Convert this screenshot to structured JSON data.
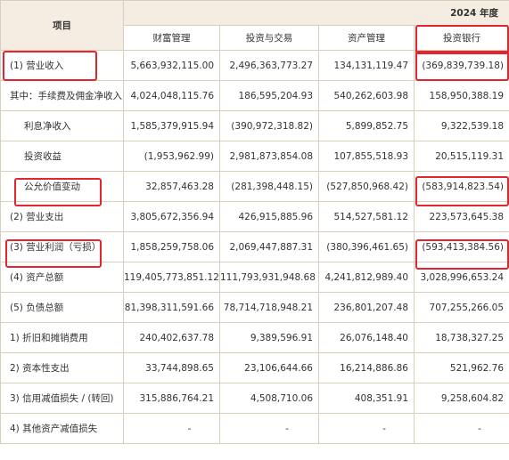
{
  "header": {
    "item_label": "项目",
    "year_label": "2024 年度",
    "columns": [
      "财富管理",
      "投资与交易",
      "资产管理",
      "投资银行"
    ]
  },
  "rows": [
    {
      "label": "(1) 营业收入",
      "values": [
        "5,663,932,115.00",
        "2,496,363,773.27",
        "134,131,119.47",
        "(369,839,739.18)"
      ]
    },
    {
      "label": "其中：手续费及佣金净收入",
      "values": [
        "4,024,048,115.76",
        "186,595,204.93",
        "540,262,603.98",
        "158,950,388.19"
      ]
    },
    {
      "label": "利息净收入",
      "values": [
        "1,585,379,915.94",
        "(390,972,318.82)",
        "5,899,852.75",
        "9,322,539.18"
      ]
    },
    {
      "label": "投资收益",
      "values": [
        "(1,953,962.99)",
        "2,981,873,854.08",
        "107,855,518.93",
        "20,515,119.31"
      ]
    },
    {
      "label": "公允价值变动",
      "values": [
        "32,857,463.28",
        "(281,398,448.15)",
        "(527,850,968.42)",
        "(583,914,823.54)"
      ]
    },
    {
      "label": "(2) 营业支出",
      "values": [
        "3,805,672,356.94",
        "426,915,885.96",
        "514,527,581.12",
        "223,573,645.38"
      ]
    },
    {
      "label": "(3) 营业利润（亏损）",
      "values": [
        "1,858,259,758.06",
        "2,069,447,887.31",
        "(380,396,461.65)",
        "(593,413,384.56)"
      ]
    },
    {
      "label": "(4) 资产总额",
      "values": [
        "119,405,773,851.12",
        "111,793,931,948.68",
        "4,241,812,989.40",
        "3,028,996,653.24"
      ]
    },
    {
      "label": "(5) 负债总额",
      "values": [
        "81,398,311,591.66",
        "78,714,718,948.21",
        "236,801,207.48",
        "707,255,266.05"
      ]
    },
    {
      "label": "1) 折旧和摊销费用",
      "values": [
        "240,402,637.78",
        "9,389,596.91",
        "26,076,148.40",
        "18,738,327.25"
      ]
    },
    {
      "label": "2) 资本性支出",
      "values": [
        "33,744,898.65",
        "23,106,644.66",
        "16,214,886.86",
        "521,962.76"
      ]
    },
    {
      "label": "3) 信用减值损失 / (转回)",
      "values": [
        "315,886,764.21",
        "4,508,710.06",
        "408,351.91",
        "9,258,604.82"
      ]
    },
    {
      "label": "4) 其他资产减值损失",
      "values": [
        "-",
        "-",
        "-",
        "-"
      ]
    }
  ]
}
